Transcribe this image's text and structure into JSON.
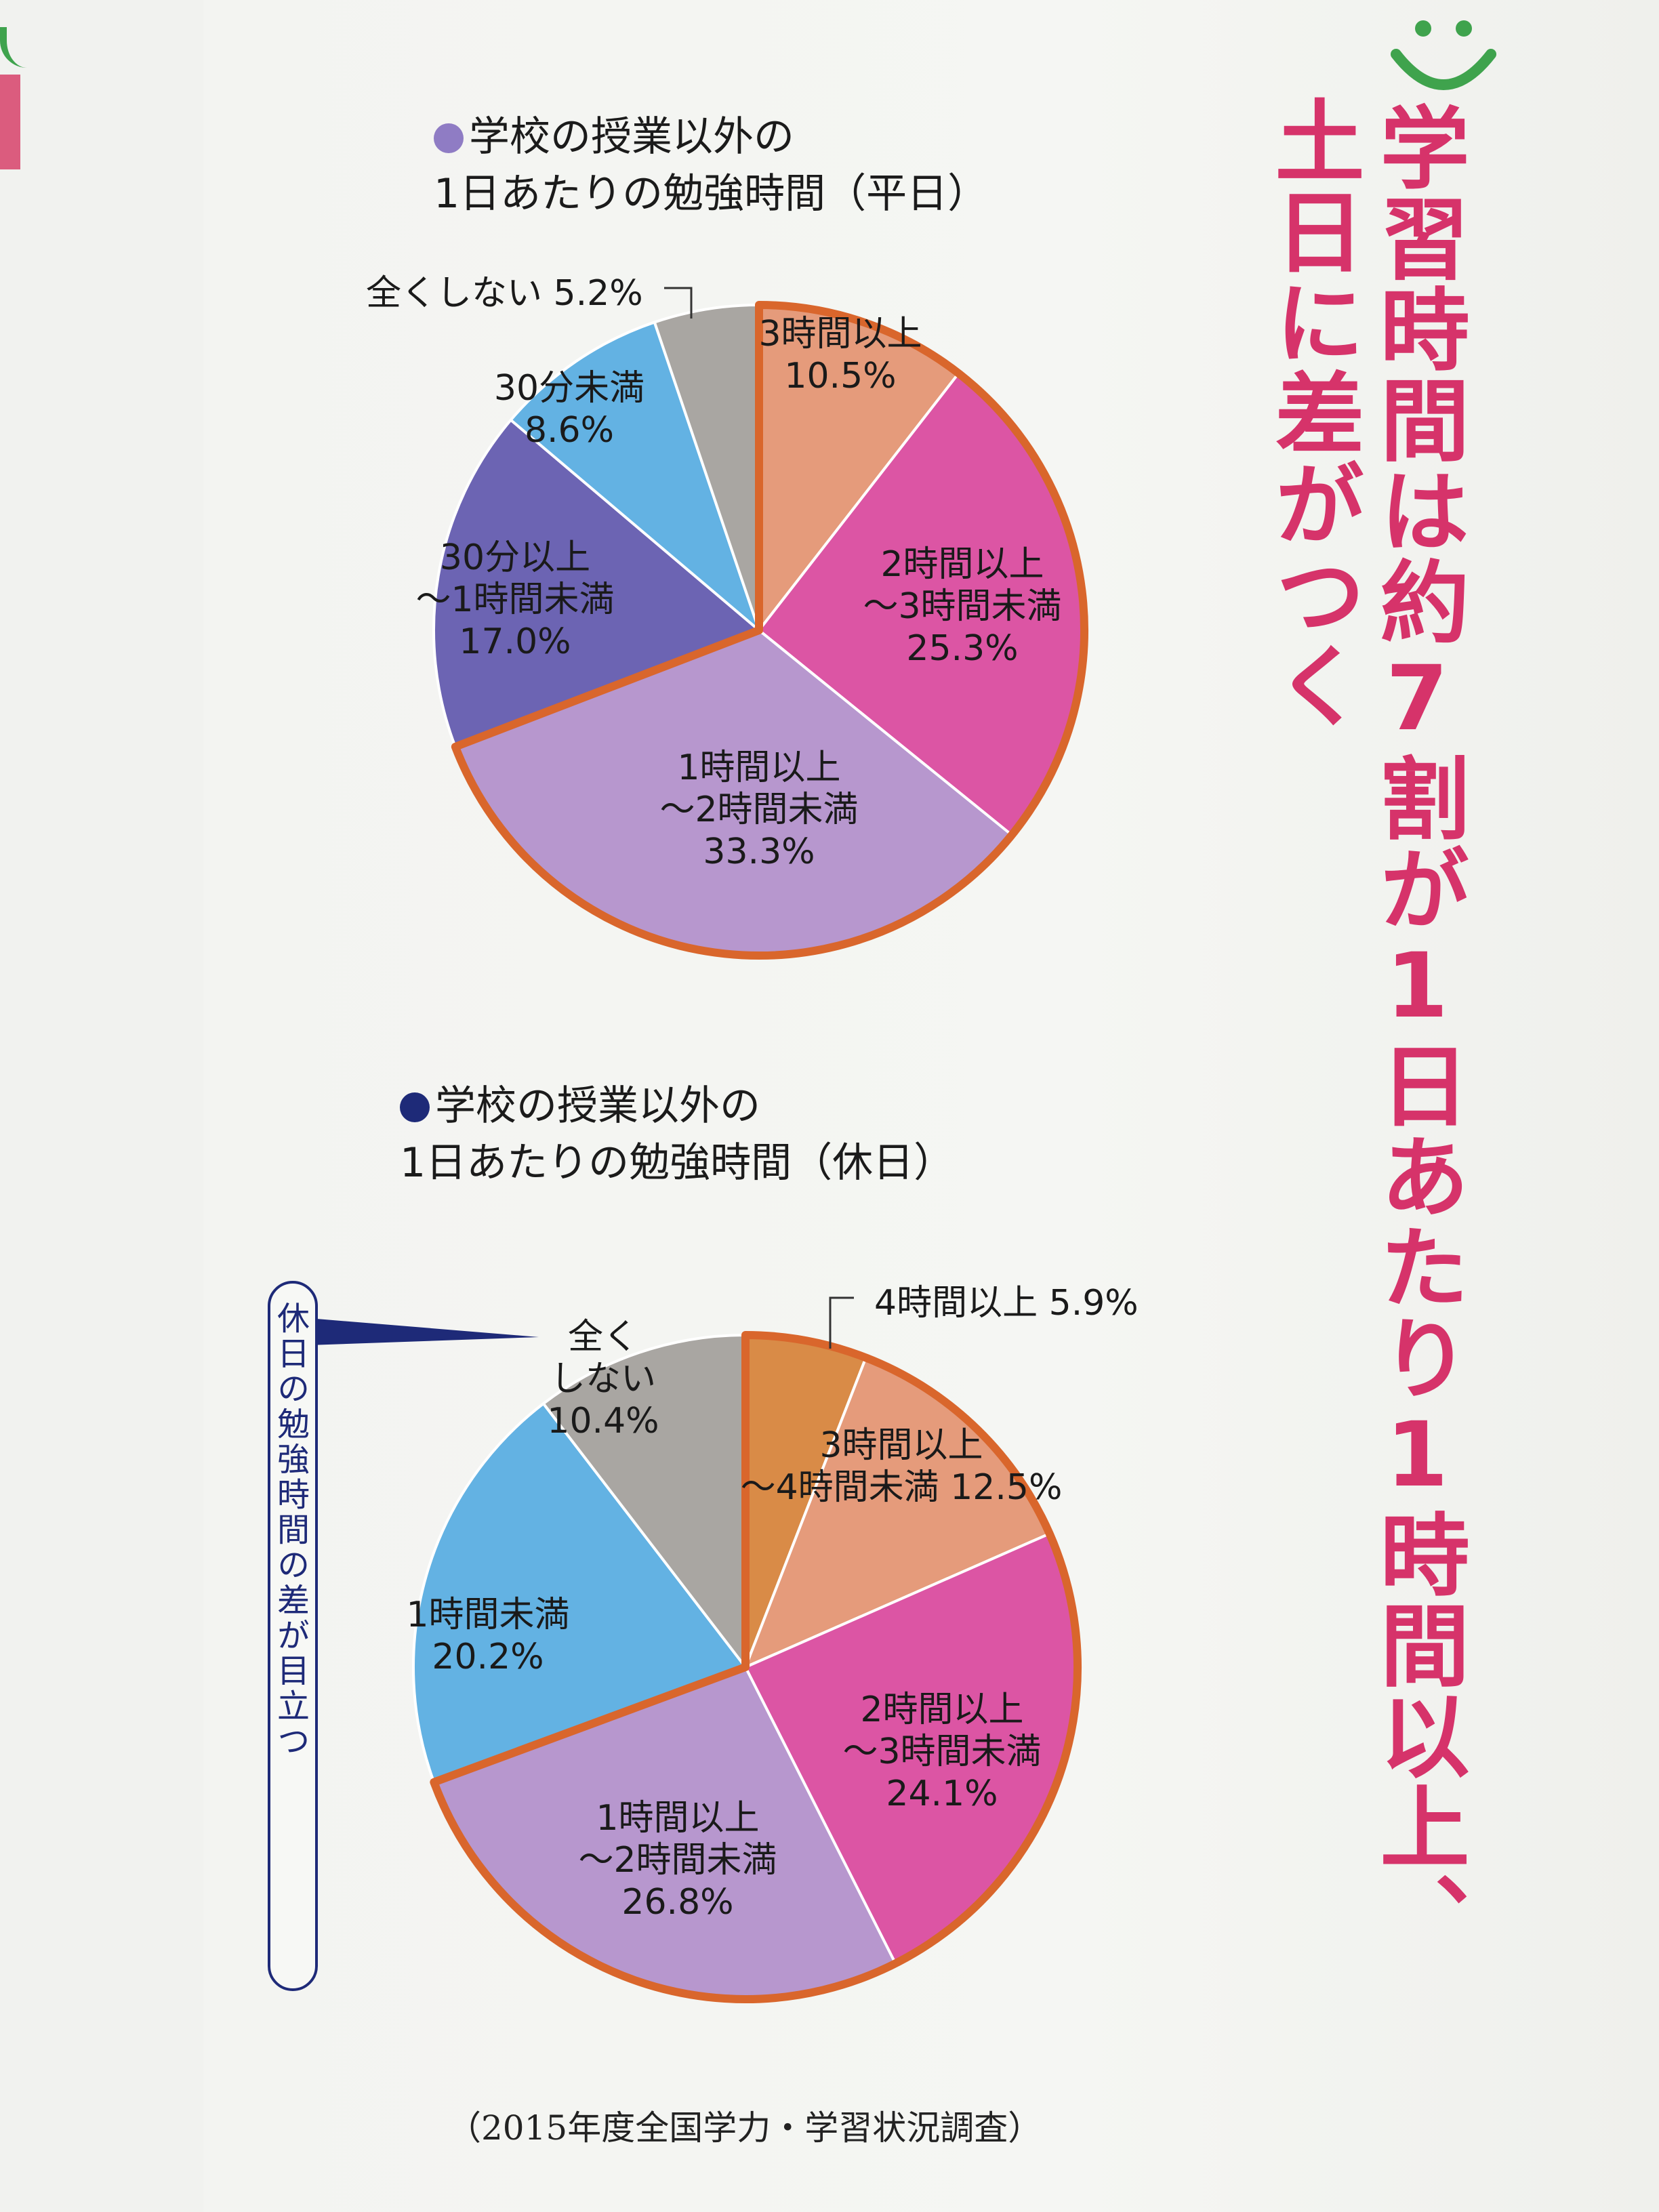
{
  "headline": {
    "line1": "学習時間は約7割が1日あたり1時間以上、",
    "line2": "土日に差がつく"
  },
  "bubble_note": "休日の勉強時間の差が目立つ",
  "source": "（2015年度全国学力・学習状況調査）",
  "colors": {
    "headline": "#d6336a",
    "highlight_outline": "#d9662c",
    "bullet_weekday": "#8f7cc4",
    "bullet_holiday": "#1e2a78"
  },
  "chart_data": [
    {
      "type": "pie",
      "title": "学校の授業以外の\n1日あたりの勉強時間（平日）",
      "unit": "%",
      "slices": [
        {
          "label": "3時間以上",
          "value": 10.5,
          "color": "#e59b7b"
        },
        {
          "label": "2時間以上\n～3時間未満",
          "value": 25.3,
          "color": "#dc55a4"
        },
        {
          "label": "1時間以上\n～2時間未満",
          "value": 33.3,
          "color": "#b797ce"
        },
        {
          "label": "30分以上\n～1時間未満",
          "value": 17.0,
          "color": "#6c64b3"
        },
        {
          "label": "30分未満",
          "value": 8.6,
          "color": "#63b2e3"
        },
        {
          "label": "全くしない",
          "value": 5.2,
          "color": "#a9a6a2"
        }
      ],
      "value_labels": [
        "10.5%",
        "25.3%",
        "33.3%",
        "17.0%",
        "8.6%",
        "5.2%"
      ],
      "highlighted_slices": [
        "3時間以上",
        "2時間以上\n～3時間未満",
        "1時間以上\n～2時間未満"
      ]
    },
    {
      "type": "pie",
      "title": "学校の授業以外の\n1日あたりの勉強時間（休日）",
      "unit": "%",
      "slices": [
        {
          "label": "4時間以上",
          "value": 5.9,
          "color": "#d98b47"
        },
        {
          "label": "3時間以上\n～4時間未満",
          "value": 12.5,
          "color": "#e59b7b"
        },
        {
          "label": "2時間以上\n～3時間未満",
          "value": 24.1,
          "color": "#dc55a4"
        },
        {
          "label": "1時間以上\n～2時間未満",
          "value": 26.8,
          "color": "#b797ce"
        },
        {
          "label": "1時間未満",
          "value": 20.2,
          "color": "#63b2e3"
        },
        {
          "label": "全く\nしない",
          "value": 10.4,
          "color": "#a9a6a2"
        }
      ],
      "value_labels": [
        "5.9%",
        "12.5%",
        "24.1%",
        "26.8%",
        "20.2%",
        "10.4%"
      ],
      "highlighted_slices": [
        "4時間以上",
        "3時間以上\n～4時間未満",
        "2時間以上\n～3時間未満",
        "1時間以上\n～2時間未満"
      ]
    }
  ]
}
